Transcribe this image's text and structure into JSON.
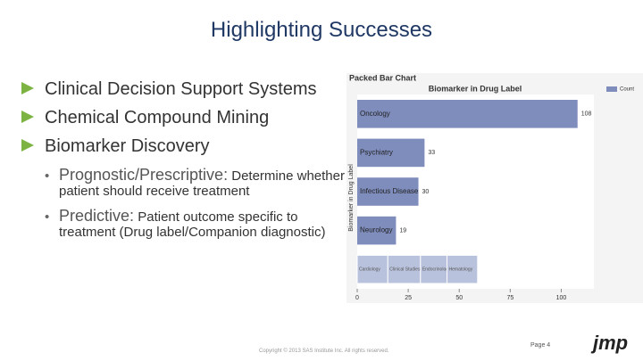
{
  "slide": {
    "title": "Highlighting Successes",
    "bullets": [
      "Clinical Decision Support Systems",
      "Chemical Compound Mining",
      "Biomarker Discovery"
    ],
    "sub_bullets": [
      {
        "term": "Prognostic/Prescriptive:",
        "text": "Determine whether patient should receive treatment"
      },
      {
        "term": "Predictive:",
        "text": "Patient outcome specific to treatment (Drug label/Companion diagnostic)"
      }
    ],
    "footer": "Copyright © 2013 SAS Institute Inc. All rights reserved.",
    "page": "Page 4",
    "logo": "jmp"
  },
  "chart_data": {
    "type": "packed-bar",
    "title": "Packed Bar Chart",
    "subtitle": "Biomarker in Drug Label",
    "y_label": "Biomarker in Drug Label",
    "categories": [
      "Oncology",
      "Psychiatry",
      "Infectious Disease",
      "Neurology"
    ],
    "series": [
      {
        "name": "Count",
        "color": "#7f8dbd",
        "values": [
          108,
          33,
          30,
          19
        ]
      }
    ],
    "packed": {
      "categories": [
        "Cardiology",
        "Clinical Studies",
        "Endocrinology",
        "Hematology"
      ],
      "values": [
        15,
        16,
        13,
        15
      ],
      "color": "#b9c2dc"
    },
    "xlim": [
      0,
      116
    ],
    "xticks": [
      0,
      25,
      50,
      75,
      100
    ]
  }
}
